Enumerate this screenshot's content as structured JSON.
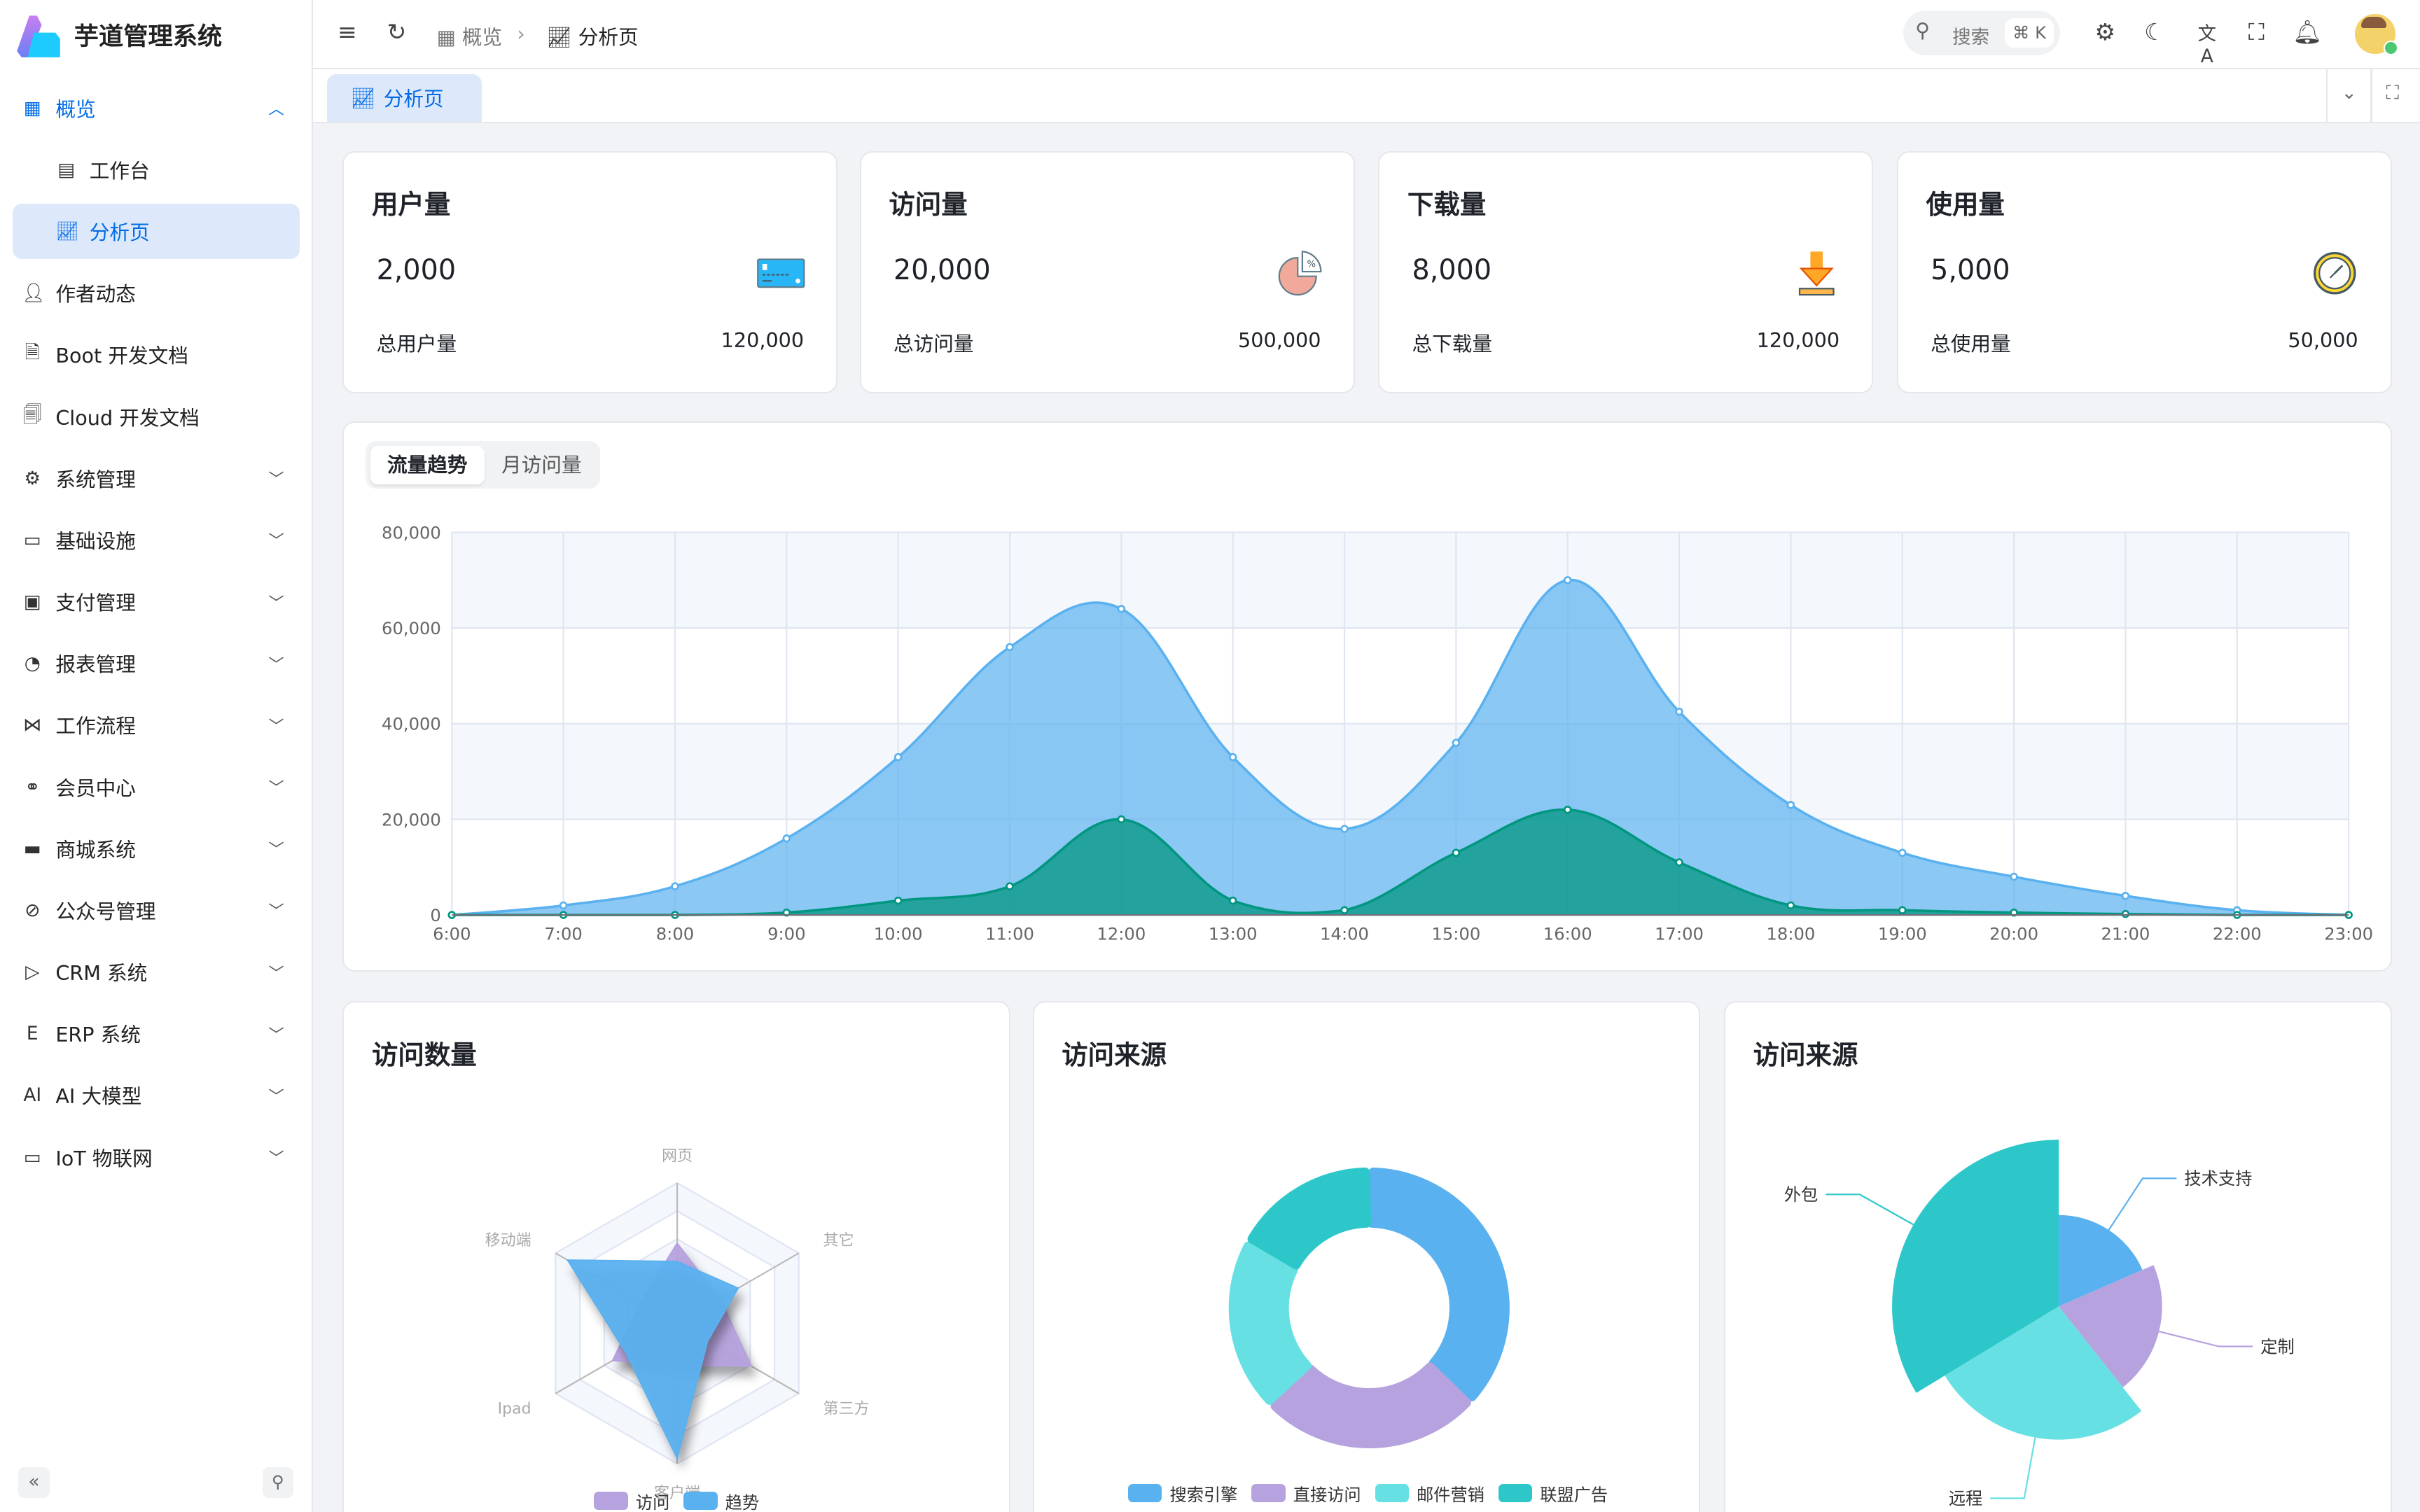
{
  "app": {
    "title": "芋道管理系统"
  },
  "sidebar": {
    "items": [
      {
        "label": "概览",
        "icon": "grid-icon",
        "state": "expanded-active"
      },
      {
        "label": "工作台",
        "icon": "workbench-icon",
        "sub": true
      },
      {
        "label": "分析页",
        "icon": "chart-icon",
        "sub": true,
        "selected": true
      },
      {
        "label": "作者动态",
        "icon": "user-icon"
      },
      {
        "label": "Boot 开发文档",
        "icon": "document-icon"
      },
      {
        "label": "Cloud 开发文档",
        "icon": "documents-icon"
      },
      {
        "label": "系统管理",
        "icon": "gear-icon",
        "expandable": true
      },
      {
        "label": "基础设施",
        "icon": "monitor-icon",
        "expandable": true
      },
      {
        "label": "支付管理",
        "icon": "payment-icon",
        "expandable": true
      },
      {
        "label": "报表管理",
        "icon": "pie-icon",
        "expandable": true
      },
      {
        "label": "工作流程",
        "icon": "workflow-icon",
        "expandable": true
      },
      {
        "label": "会员中心",
        "icon": "bike-icon",
        "expandable": true
      },
      {
        "label": "商城系统",
        "icon": "shop-icon",
        "expandable": true
      },
      {
        "label": "公众号管理",
        "icon": "compass-icon",
        "expandable": true
      },
      {
        "label": "CRM 系统",
        "icon": "crm-icon",
        "expandable": true
      },
      {
        "label": "ERP 系统",
        "icon": "erp-icon",
        "expandable": true
      },
      {
        "label": "AI 大模型",
        "icon": "ai-icon",
        "expandable": true
      },
      {
        "label": "IoT 物联网",
        "icon": "iot-icon",
        "expandable": true
      }
    ]
  },
  "header": {
    "breadcrumb": [
      "概览",
      "分析页"
    ],
    "search_placeholder": "搜索",
    "search_shortcut": "⌘ K"
  },
  "tabs": {
    "active": "分析页"
  },
  "stats": [
    {
      "title": "用户量",
      "value": "2,000",
      "footer": "总用户量",
      "total": "120,000",
      "icon": "credit-card-icon"
    },
    {
      "title": "访问量",
      "value": "20,000",
      "footer": "总访问量",
      "total": "500,000",
      "icon": "pie-chart-icon"
    },
    {
      "title": "下载量",
      "value": "8,000",
      "footer": "总下载量",
      "total": "120,000",
      "icon": "download-icon"
    },
    {
      "title": "使用量",
      "value": "5,000",
      "footer": "总使用量",
      "total": "50,000",
      "icon": "clock-icon"
    }
  ],
  "trend": {
    "tabs": [
      "流量趋势",
      "月访问量"
    ],
    "active_tab": 0
  },
  "bottom": {
    "radar_title": "访问数量",
    "donut_title": "访问来源",
    "rose_title": "访问来源"
  },
  "colors": {
    "primary": "#006be6",
    "blue": "#5ab1ef",
    "purple": "#b6a2de",
    "cyan": "#67e0e3",
    "teal": "#2ec7c9",
    "green": "#019680"
  },
  "chart_data": [
    {
      "type": "area",
      "x": [
        "6:00",
        "7:00",
        "8:00",
        "9:00",
        "10:00",
        "11:00",
        "12:00",
        "13:00",
        "14:00",
        "15:00",
        "16:00",
        "17:00",
        "18:00",
        "19:00",
        "20:00",
        "21:00",
        "22:00",
        "23:00"
      ],
      "y_ticks": [
        "0",
        "20,000",
        "40,000",
        "60,000",
        "80,000"
      ],
      "ylim": [
        0,
        80000
      ],
      "grid": true,
      "series": [
        {
          "values": [
            0,
            2000,
            6000,
            16000,
            33000,
            56000,
            64000,
            33000,
            18000,
            36000,
            70000,
            42500,
            23000,
            13000,
            8000,
            4000,
            1000,
            0
          ],
          "color": "#5ab1ef"
        },
        {
          "values": [
            0,
            0,
            0,
            500,
            3000,
            6000,
            20000,
            3000,
            1000,
            13000,
            22000,
            11000,
            2000,
            1000,
            500,
            200,
            0,
            0
          ],
          "color": "#019680"
        }
      ]
    },
    {
      "type": "radar",
      "indicators": [
        "网页",
        "其它",
        "第三方",
        "客户端",
        "Ipad",
        "移动端"
      ],
      "max": 100,
      "series": [
        {
          "name": "访问",
          "values": [
            57,
            35,
            61,
            30,
            53,
            30
          ],
          "color": "#b6a2de"
        },
        {
          "name": "趋势",
          "values": [
            44,
            50,
            25,
            96,
            42,
            90
          ],
          "color": "#5ab1ef"
        }
      ],
      "legend": "bottom"
    },
    {
      "type": "pie",
      "variant": "donut",
      "categories": [
        "搜索引擎",
        "直接访问",
        "邮件营销",
        "联盟广告"
      ],
      "values": [
        1048,
        735,
        580,
        484
      ],
      "colors": [
        "#5ab1ef",
        "#b6a2de",
        "#67e0e3",
        "#2ec7c9"
      ],
      "legend": "bottom"
    },
    {
      "type": "pie",
      "variant": "rose",
      "categories": [
        "技术支持",
        "定制",
        "远程",
        "外包"
      ],
      "values": [
        274,
        310,
        400,
        500
      ],
      "colors": [
        "#5ab1ef",
        "#b6a2de",
        "#67e0e3",
        "#2ec7c9"
      ]
    }
  ]
}
